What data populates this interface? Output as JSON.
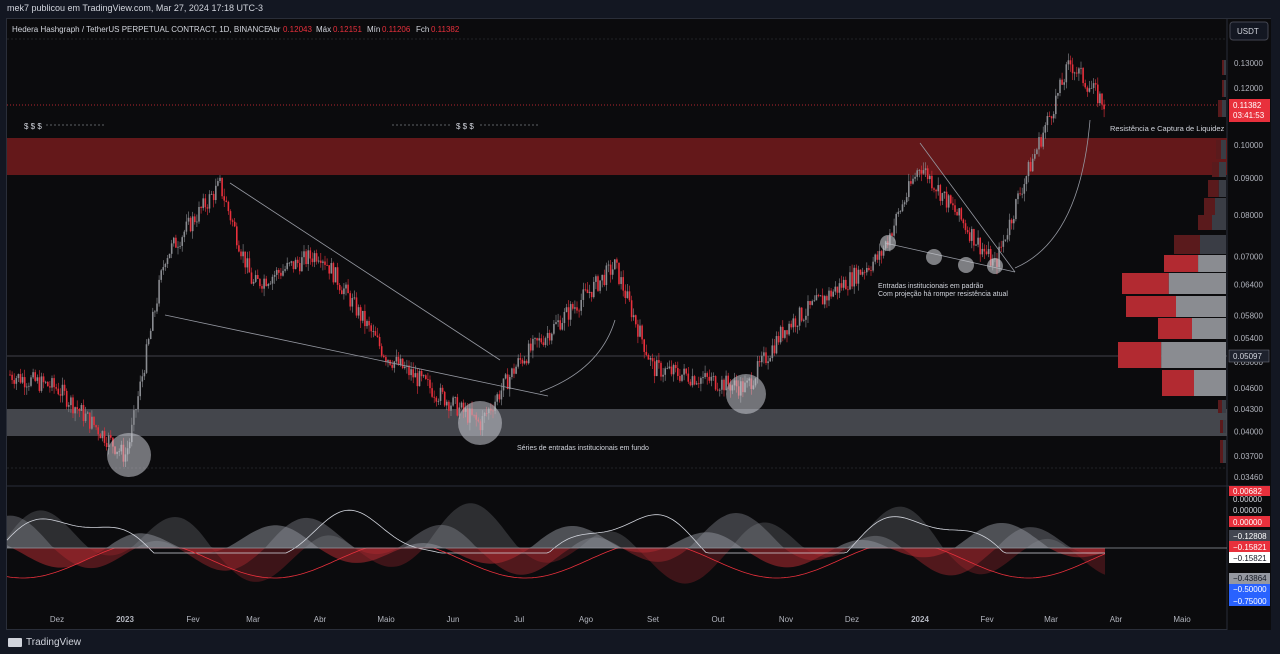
{
  "header": {
    "caption": "mek7 publicou em TradingView.com, Mar 27, 2024 17:18 UTC-3"
  },
  "legend": {
    "symbol": "Hedera Hashgraph / TetherUS PERPETUAL CONTRACT, 1D, BINANCE",
    "o_label": "Abr",
    "o_value": "0.12043",
    "h_label": "Máx",
    "h_value": "0.12151",
    "l_label": "Mín",
    "l_value": "0.11206",
    "c_label": "Fch",
    "c_value": "0.11382"
  },
  "currency_button": "USDT",
  "last_price": {
    "value": "0.11382",
    "countdown": "03:41:53"
  },
  "line_price": "0.05097",
  "annotations": {
    "dollars_left": "$ $ $",
    "dollars_mid": "$ $ $",
    "resistance": "Resistência e Captura de Liquidez",
    "pattern_1": "Entradas institucionais em padrão",
    "pattern_2": "Com projeção há romper resistência atual",
    "series": "Séries de entradas institucionais em fundo"
  },
  "indicator_labels": {
    "l1": "0.00682",
    "l2": "0.00000",
    "l3": "0.00000",
    "l4": "0.00000",
    "l5": "−0.12808",
    "l6": "−0.15821",
    "l7": "−0.15821",
    "l8": "−0.43864",
    "l9": "−0.50000",
    "l10": "−0.75000"
  },
  "colors": {
    "up": "#8a8c91",
    "down": "#e8303c",
    "zone_red": "#6e1a1c",
    "zone_gray": "#4a4d53"
  },
  "footer": {
    "brand": "TradingView"
  },
  "chart_data": {
    "type": "candlestick",
    "symbol": "HBARUSDT.P",
    "interval": "1D",
    "y_scale": "log",
    "yticks": [
      "0.13000",
      "0.12000",
      "0.10000",
      "0.09000",
      "0.08000",
      "0.07000",
      "0.06400",
      "0.05800",
      "0.05400",
      "0.05000",
      "0.04600",
      "0.04300",
      "0.04000",
      "0.03700",
      "0.03460"
    ],
    "xticks": [
      "Dez",
      "2023",
      "Fev",
      "Mar",
      "Abr",
      "Maio",
      "Jun",
      "Jul",
      "Ago",
      "Set",
      "Out",
      "Nov",
      "Dez",
      "2024",
      "Fev",
      "Mar",
      "Abr",
      "Maio"
    ],
    "approx_closes": [
      {
        "t": "Nov",
        "p": 0.048
      },
      {
        "t": "Dez",
        "p": 0.046
      },
      {
        "t": "Dez 2022 (late)",
        "p": 0.037
      },
      {
        "t": "2023",
        "p": 0.039
      },
      {
        "t": "Jan 2023 (mid)",
        "p": 0.07
      },
      {
        "t": "Fev",
        "p": 0.088
      },
      {
        "t": "Mar",
        "p": 0.064
      },
      {
        "t": "Abr",
        "p": 0.071
      },
      {
        "t": "Maio",
        "p": 0.051
      },
      {
        "t": "Jun",
        "p": 0.041
      },
      {
        "t": "Jul",
        "p": 0.05
      },
      {
        "t": "Ago",
        "p": 0.068
      },
      {
        "t": "Set",
        "p": 0.049
      },
      {
        "t": "Out",
        "p": 0.046
      },
      {
        "t": "Nov",
        "p": 0.056
      },
      {
        "t": "Dez",
        "p": 0.07
      },
      {
        "t": "2024",
        "p": 0.094
      },
      {
        "t": "Jan 2024 (late)",
        "p": 0.068
      },
      {
        "t": "Fev",
        "p": 0.086
      },
      {
        "t": "Mar",
        "p": 0.13
      },
      {
        "t": "Mar 27",
        "p": 0.11382
      }
    ],
    "zones": [
      {
        "kind": "resistance",
        "low": 0.091,
        "high": 0.102
      },
      {
        "kind": "support",
        "low": 0.0396,
        "high": 0.0432
      }
    ]
  }
}
